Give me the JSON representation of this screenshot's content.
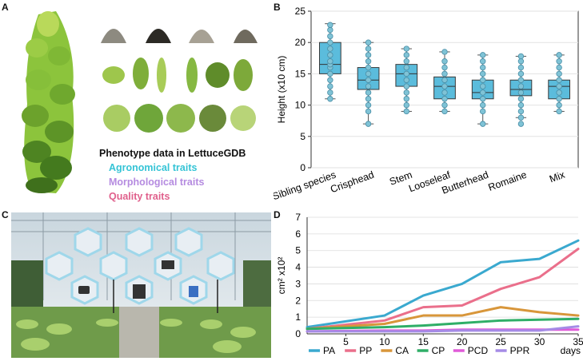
{
  "panels": {
    "a": "A",
    "b": "B",
    "c": "C",
    "d": "D"
  },
  "panel_a": {
    "heading": "Phenotype data in LettuceGDB",
    "traits": [
      {
        "label": "Agronomical traits",
        "color": "#35c4d6"
      },
      {
        "label": "Morphological traits",
        "color": "#b58be0"
      },
      {
        "label": "Quality traits",
        "color": "#e0608c"
      }
    ]
  },
  "chart_data": [
    {
      "type": "box",
      "panel": "B",
      "ylabel": "Height (x10 cm)",
      "ylim": [
        0,
        25
      ],
      "yticks": [
        0,
        5,
        10,
        15,
        20,
        25
      ],
      "color": "#5bbcdc",
      "categories": [
        "Sibling species",
        "Crisphead",
        "Stem",
        "Looseleaf",
        "Butterhead",
        "Romaine",
        "Mix"
      ],
      "boxes": [
        {
          "min": 11,
          "q1": 15,
          "median": 16.5,
          "q3": 20,
          "max": 23,
          "points": [
            11,
            12,
            13,
            14,
            15,
            16,
            16.5,
            17,
            18,
            19,
            20,
            21,
            22,
            22.8
          ]
        },
        {
          "min": 7,
          "q1": 12.5,
          "median": 14,
          "q3": 16,
          "max": 20,
          "points": [
            7,
            9,
            10,
            11,
            12,
            13,
            14,
            15,
            16,
            17,
            18,
            19,
            20
          ]
        },
        {
          "min": 9,
          "q1": 13,
          "median": 15,
          "q3": 16.5,
          "max": 19,
          "points": [
            9,
            10,
            11,
            12,
            13,
            14,
            15,
            16,
            17,
            18,
            19
          ]
        },
        {
          "min": 9,
          "q1": 11,
          "median": 13,
          "q3": 14.5,
          "max": 18.5,
          "points": [
            9,
            10,
            11,
            12,
            13,
            14,
            15,
            16,
            17,
            18.5
          ]
        },
        {
          "min": 7,
          "q1": 11,
          "median": 12,
          "q3": 14,
          "max": 18,
          "points": [
            7,
            9,
            10,
            11,
            12,
            13,
            14,
            15,
            16,
            17,
            18
          ]
        },
        {
          "min": 8,
          "q1": 11.5,
          "median": 12.5,
          "q3": 14,
          "max": 17.8,
          "points": [
            7,
            8,
            9,
            10,
            11,
            12,
            13,
            14,
            15,
            16,
            17,
            17.8
          ]
        },
        {
          "min": 9,
          "q1": 11,
          "median": 13,
          "q3": 14,
          "max": 18,
          "points": [
            9,
            10,
            11,
            12,
            13,
            14,
            15,
            16,
            17,
            18
          ]
        }
      ]
    },
    {
      "type": "line",
      "panel": "D",
      "ylabel": "cm² x10²",
      "xlabel": "days",
      "xlim": [
        0,
        35
      ],
      "ylim": [
        0,
        7
      ],
      "xticks": [
        5,
        10,
        15,
        20,
        25,
        30,
        35
      ],
      "yticks": [
        0,
        1,
        2,
        3,
        4,
        5,
        6,
        7
      ],
      "x": [
        0,
        10,
        15,
        20,
        25,
        30,
        35
      ],
      "series": [
        {
          "name": "PA",
          "color": "#3aa9cf",
          "values": [
            0.4,
            1.1,
            2.3,
            3.0,
            4.3,
            4.5,
            5.6
          ]
        },
        {
          "name": "PP",
          "color": "#ea6f8b",
          "values": [
            0.3,
            0.8,
            1.6,
            1.7,
            2.7,
            3.4,
            5.1
          ]
        },
        {
          "name": "CA",
          "color": "#d8963a",
          "values": [
            0.3,
            0.6,
            1.1,
            1.1,
            1.6,
            1.3,
            1.1
          ]
        },
        {
          "name": "CP",
          "color": "#2fae67",
          "values": [
            0.3,
            0.4,
            0.5,
            0.65,
            0.8,
            0.85,
            0.9
          ]
        },
        {
          "name": "PCD",
          "color": "#e05ad8",
          "values": [
            0.15,
            0.2,
            0.2,
            0.25,
            0.25,
            0.25,
            0.25
          ]
        },
        {
          "name": "PPR",
          "color": "#a58be6",
          "values": [
            0.15,
            0.15,
            0.15,
            0.2,
            0.2,
            0.2,
            0.45
          ]
        }
      ]
    }
  ]
}
